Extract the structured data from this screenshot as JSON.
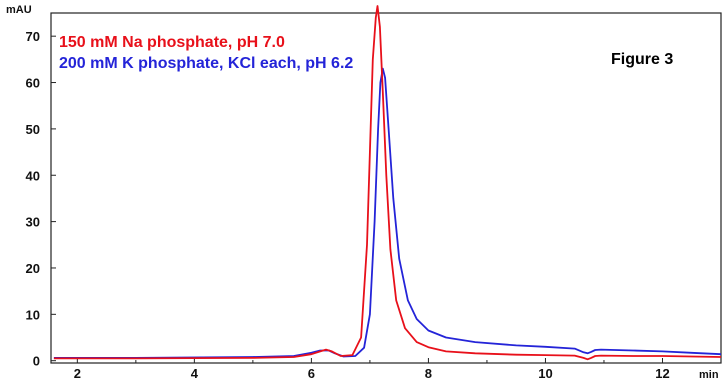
{
  "chart_data": {
    "type": "line",
    "title": "",
    "annotation": "Figure 3",
    "xlabel": "min",
    "ylabel": "mAU",
    "xlim": [
      1.55,
      13.0
    ],
    "ylim": [
      -0.5,
      75
    ],
    "xticks": [
      2,
      4,
      6,
      8,
      10,
      12
    ],
    "yticks": [
      0,
      10,
      20,
      30,
      40,
      50,
      60,
      70
    ],
    "grid": false,
    "legend_position": "top-left",
    "series": [
      {
        "name": "150 mM Na phosphate, pH 7.0",
        "color": "#e8101a",
        "x": [
          1.6,
          3.0,
          5.0,
          5.7,
          6.0,
          6.15,
          6.25,
          6.35,
          6.5,
          6.7,
          6.85,
          6.95,
          7.0,
          7.05,
          7.1,
          7.13,
          7.17,
          7.22,
          7.28,
          7.35,
          7.45,
          7.6,
          7.8,
          8.0,
          8.3,
          8.8,
          9.5,
          10.0,
          10.5,
          10.65,
          10.72,
          10.78,
          10.85,
          10.95,
          11.5,
          12.0,
          12.5,
          13.0
        ],
        "y": [
          0.5,
          0.5,
          0.6,
          0.8,
          1.4,
          2.0,
          2.4,
          2.0,
          1.0,
          1.2,
          5.0,
          25.0,
          45.0,
          65.0,
          74.0,
          76.5,
          72.0,
          58.0,
          40.0,
          24.0,
          13.0,
          7.0,
          4.0,
          2.9,
          2.0,
          1.6,
          1.3,
          1.2,
          1.1,
          0.6,
          0.3,
          0.6,
          1.0,
          1.1,
          1.0,
          1.0,
          0.9,
          0.8
        ]
      },
      {
        "name": "200 mM K phosphate, KCl each, pH 6.2",
        "color": "#2424d8",
        "x": [
          1.6,
          3.0,
          5.0,
          5.7,
          6.0,
          6.15,
          6.3,
          6.4,
          6.55,
          6.75,
          6.9,
          7.0,
          7.08,
          7.14,
          7.18,
          7.22,
          7.26,
          7.32,
          7.4,
          7.5,
          7.65,
          7.8,
          8.0,
          8.3,
          8.8,
          9.5,
          10.0,
          10.5,
          10.65,
          10.72,
          10.78,
          10.85,
          10.95,
          11.5,
          12.0,
          12.5,
          13.0
        ],
        "y": [
          0.6,
          0.6,
          0.8,
          1.0,
          1.7,
          2.2,
          2.2,
          1.6,
          0.9,
          1.0,
          2.8,
          10.0,
          30.0,
          50.0,
          60.0,
          63.0,
          61.0,
          50.0,
          35.0,
          22.0,
          13.0,
          9.0,
          6.5,
          5.0,
          4.0,
          3.3,
          3.0,
          2.6,
          1.8,
          1.6,
          1.9,
          2.3,
          2.4,
          2.2,
          2.0,
          1.7,
          1.4
        ]
      }
    ]
  }
}
